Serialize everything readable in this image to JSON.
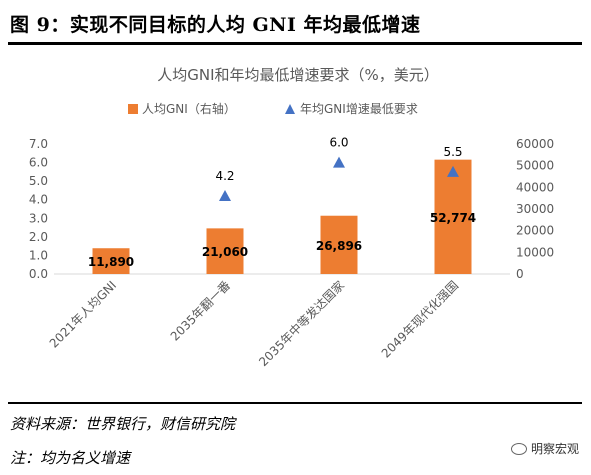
{
  "figure": {
    "title": "图 9：实现不同目标的人均 GNI 年均最低增速",
    "source": "资料来源：世界银行，财信研究院",
    "note": "注：均为名义增速",
    "brand": "明察宏观"
  },
  "colors": {
    "bar": "#ED7D31",
    "marker": "#4472C4",
    "axis": "#d9d9d9",
    "text": "#595959"
  },
  "chart_data": {
    "type": "bar",
    "title": "人均GNI和年均最低增速要求（%，美元）",
    "legend_position": "top",
    "categories": [
      "2021年人均GNI",
      "2035年翻一番",
      "2035年中等发达国家",
      "2049年现代化强国"
    ],
    "series": [
      {
        "name": "人均GNI（右轴）",
        "type": "bar",
        "axis": "right",
        "values": [
          11890,
          21060,
          26896,
          52774
        ],
        "labels": [
          "11,890",
          "21,060",
          "26,896",
          "52,774"
        ]
      },
      {
        "name": "年均GNI增速最低要求",
        "type": "scatter",
        "marker": "triangle",
        "axis": "left",
        "values": [
          null,
          4.2,
          6.0,
          5.5
        ],
        "labels": [
          "",
          "4.2",
          "6.0",
          "5.5"
        ]
      }
    ],
    "left_axis": {
      "min": 0,
      "max": 7,
      "ticks": [
        "0.0",
        "1.0",
        "2.0",
        "3.0",
        "4.0",
        "5.0",
        "6.0",
        "7.0"
      ]
    },
    "right_axis": {
      "min": 0,
      "max": 60000,
      "ticks": [
        "0",
        "10000",
        "20000",
        "30000",
        "40000",
        "50000",
        "60000"
      ]
    },
    "grid": false
  }
}
